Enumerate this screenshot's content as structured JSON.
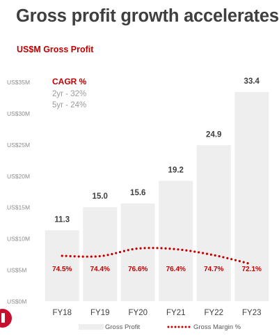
{
  "page": {
    "title": "Gross profit growth accelerates",
    "subtitle": "US$M Gross Profit"
  },
  "colors": {
    "title": "#3f3f3f",
    "accent": "#c00000",
    "bar": "#eeeeee",
    "axis_text": "#8c8c8c",
    "value_label": "#3f3f3f",
    "brand": "#c8102e"
  },
  "chart_data": {
    "type": "bar",
    "categories": [
      "FY18",
      "FY19",
      "FY20",
      "FY21",
      "FY22",
      "FY23"
    ],
    "series": [
      {
        "name": "Gross Profit",
        "values": [
          11.3,
          15.0,
          15.6,
          19.2,
          24.9,
          33.4
        ]
      },
      {
        "name": "Gross Margin %",
        "values": [
          74.5,
          74.4,
          76.6,
          76.4,
          74.7,
          72.1
        ],
        "style": "dotted-line"
      }
    ],
    "value_labels": [
      "11.3",
      "15.0",
      "15.6",
      "19.2",
      "24.9",
      "33.4"
    ],
    "margin_labels": [
      "74.5%",
      "74.4%",
      "76.6%",
      "76.4%",
      "74.7%",
      "72.1%"
    ],
    "ylim": [
      0,
      35
    ],
    "yticks": [
      0,
      5,
      10,
      15,
      20,
      25,
      30,
      35
    ],
    "ytick_labels": [
      "US$0M",
      "US$5M",
      "US$10M",
      "US$15M",
      "US$20M",
      "US$25M",
      "US$30M",
      "US$35M"
    ],
    "legend": [
      "Gross Profit",
      "Gross Margin %"
    ],
    "legend_position": "bottom",
    "grid": false,
    "annotation": {
      "title": "CAGR %",
      "lines": [
        "2yr - 32%",
        "5yr - 24%"
      ]
    }
  }
}
